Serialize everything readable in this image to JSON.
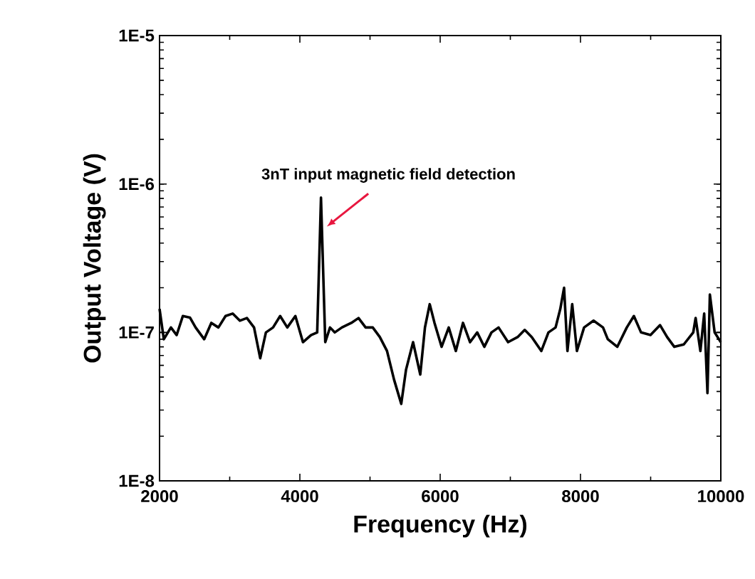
{
  "chart_data": {
    "type": "line",
    "xlabel": "Frequency (Hz)",
    "ylabel": "Output Voltage (V)",
    "log": "y",
    "xlim": [
      2000,
      10000
    ],
    "ylim": [
      1e-08,
      1e-05
    ],
    "xticks": [
      2000,
      4000,
      6000,
      8000,
      10000
    ],
    "yticks": [
      {
        "value": 1e-08,
        "label": "1E-8"
      },
      {
        "value": 1e-07,
        "label": "1E-7"
      },
      {
        "value": 1e-06,
        "label": "1E-6"
      },
      {
        "value": 1e-05,
        "label": "1E-5"
      }
    ],
    "annotations": [
      "3nT input magnetic field detection"
    ],
    "series": [
      {
        "color": "#000000",
        "x": [
          2000,
          2061,
          2162,
          2244,
          2332,
          2433,
          2514,
          2636,
          2738,
          2839,
          2941,
          3042,
          3144,
          3245,
          3347,
          3435,
          3516,
          3618,
          3719,
          3821,
          3936,
          4044,
          4159,
          4247,
          4301,
          4362,
          4430,
          4497,
          4599,
          4734,
          4836,
          4937,
          5039,
          5140,
          5242,
          5343,
          5445,
          5513,
          5614,
          5716,
          5783,
          5851,
          5919,
          6020,
          6122,
          6223,
          6325,
          6426,
          6528,
          6629,
          6731,
          6832,
          6968,
          7103,
          7205,
          7306,
          7442,
          7543,
          7645,
          7712,
          7766,
          7814,
          7882,
          7949,
          8051,
          8186,
          8321,
          8389,
          8525,
          8660,
          8761,
          8863,
          8998,
          9134,
          9235,
          9337,
          9472,
          9607,
          9641,
          9709,
          9763,
          9810,
          9844,
          9912,
          10000
        ],
        "values": [
          1.44e-07,
          9e-08,
          1.08e-07,
          9.6e-08,
          1.29e-07,
          1.26e-07,
          1.08e-07,
          9e-08,
          1.16e-07,
          1.08e-07,
          1.29e-07,
          1.34e-07,
          1.2e-07,
          1.25e-07,
          1.08e-07,
          6.7e-08,
          1e-07,
          1.08e-07,
          1.29e-07,
          1.08e-07,
          1.29e-07,
          8.6e-08,
          9.6e-08,
          1e-07,
          8.1e-07,
          8.6e-08,
          1.08e-07,
          1e-07,
          1.08e-07,
          1.16e-07,
          1.25e-07,
          1.08e-07,
          1.08e-07,
          9.3e-08,
          7.5e-08,
          4.8e-08,
          3.3e-08,
          5.6e-08,
          8.6e-08,
          5.2e-08,
          1.08e-07,
          1.55e-07,
          1.16e-07,
          8e-08,
          1.08e-07,
          7.5e-08,
          1.16e-07,
          8.6e-08,
          1e-07,
          8e-08,
          1e-07,
          1.08e-07,
          8.6e-08,
          9.3e-08,
          1.04e-07,
          9.3e-08,
          7.5e-08,
          1e-07,
          1.08e-07,
          1.44e-07,
          2e-07,
          7.5e-08,
          1.55e-07,
          7.5e-08,
          1.08e-07,
          1.2e-07,
          1.08e-07,
          9e-08,
          8e-08,
          1.08e-07,
          1.29e-07,
          1e-07,
          9.6e-08,
          1.12e-07,
          9.3e-08,
          8e-08,
          8.3e-08,
          1e-07,
          1.25e-07,
          7.5e-08,
          1.34e-07,
          3.9e-08,
          1.8e-07,
          1e-07,
          8.6e-08
        ]
      }
    ]
  }
}
